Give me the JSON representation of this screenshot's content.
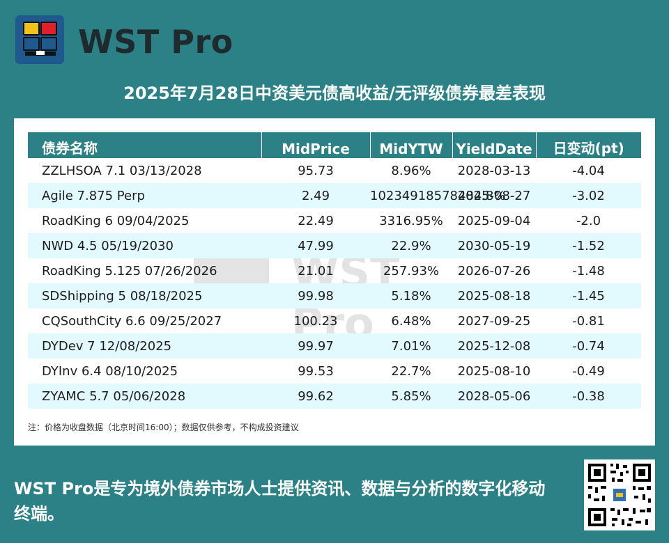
{
  "brand": {
    "name": "WST Pro",
    "logo_icon": "wst-logo-icon"
  },
  "title": "2025年7月28日中资美元债高收益/无评级债券最差表现",
  "table": {
    "headers": [
      "债券名称",
      "MidPrice",
      "MidYTW",
      "YieldDate",
      "日变动(pt)"
    ],
    "rows": [
      [
        "ZZLHSOA 7.1 03/13/2028",
        "95.73",
        "8.96%",
        "2028-03-13",
        "-4.04"
      ],
      [
        "Agile 7.875 Perp",
        "2.49",
        "10234918578484.8%",
        "2025-08-27",
        "-3.02"
      ],
      [
        "RoadKing 6 09/04/2025",
        "22.49",
        "3316.95%",
        "2025-09-04",
        "-2.0"
      ],
      [
        "NWD 4.5 05/19/2030",
        "47.99",
        "22.9%",
        "2030-05-19",
        "-1.52"
      ],
      [
        "RoadKing 5.125 07/26/2026",
        "21.01",
        "257.93%",
        "2026-07-26",
        "-1.48"
      ],
      [
        "SDShipping 5 08/18/2025",
        "99.98",
        "5.18%",
        "2025-08-18",
        "-1.45"
      ],
      [
        "CQSouthCity 6.6 09/25/2027",
        "100.23",
        "6.48%",
        "2027-09-25",
        "-0.81"
      ],
      [
        "DYDev 7 12/08/2025",
        "99.97",
        "7.01%",
        "2025-12-08",
        "-0.74"
      ],
      [
        "DYInv 6.4 08/10/2025",
        "99.53",
        "22.7%",
        "2025-08-10",
        "-0.49"
      ],
      [
        "ZYAMC 5.7 05/06/2028",
        "99.62",
        "5.85%",
        "2028-05-06",
        "-0.38"
      ]
    ]
  },
  "footnote": "注：价格为收盘数据（北京时间16:00）；数据仅供参考，不构成投资建议",
  "watermark": {
    "text": "WST Pro"
  },
  "tagline": "WST Pro是专为境外债券市场人士提供资讯、数据与分析的数字化移动终端。",
  "qr_icon": "qr-code-icon",
  "colors": {
    "background": "#2b8185",
    "header_row": "#2b8185",
    "alt_row": "#e2fafd",
    "logo_bg": "#1f5a8e"
  }
}
